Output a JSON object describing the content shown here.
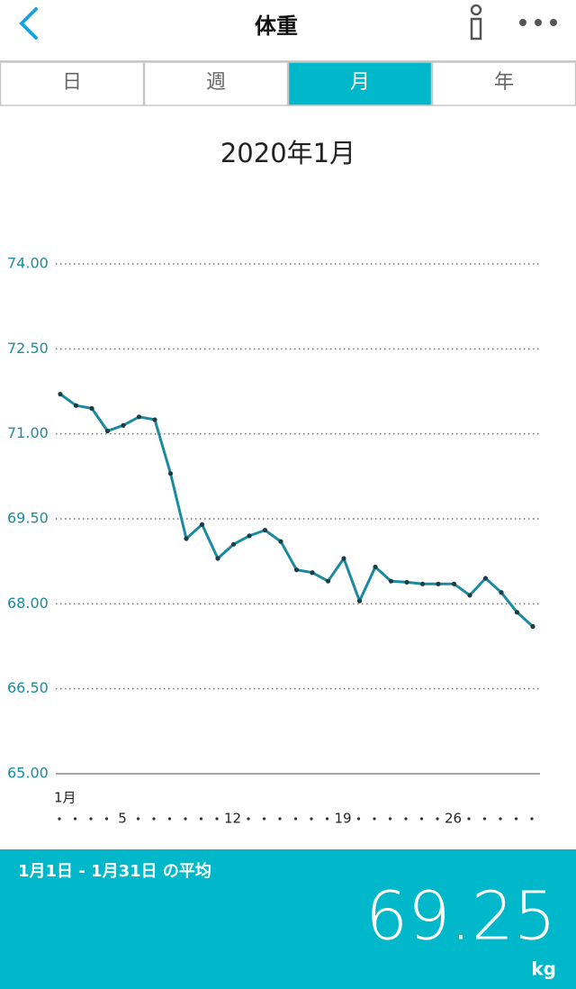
{
  "header": {
    "title": "体重"
  },
  "tabs": [
    "日",
    "週",
    "月",
    "年"
  ],
  "active_tab": 2,
  "chart_data": {
    "type": "line",
    "title": "2020年1月",
    "categories": [
      "1月",
      null,
      null,
      null,
      "5",
      null,
      null,
      null,
      null,
      null,
      null,
      "12",
      null,
      null,
      null,
      null,
      null,
      null,
      "19",
      null,
      null,
      null,
      null,
      null,
      null,
      "26",
      null,
      null,
      null,
      null,
      null
    ],
    "series": [
      {
        "name": "体重",
        "color": "#1a8aa0",
        "values": [
          71.7,
          71.5,
          71.45,
          71.05,
          71.15,
          71.3,
          71.25,
          70.3,
          69.15,
          69.4,
          68.8,
          69.05,
          69.2,
          69.3,
          69.1,
          68.6,
          68.55,
          68.4,
          68.8,
          68.05,
          68.65,
          68.4,
          68.38,
          68.35,
          68.35,
          68.35,
          68.15,
          68.45,
          68.2,
          67.85,
          67.6
        ]
      }
    ],
    "ylim": [
      65,
      74
    ],
    "yticks": [
      {
        "value": 65,
        "label": "65.00"
      },
      {
        "value": 66.5,
        "label": "66.50"
      },
      {
        "value": 68,
        "label": "68.00"
      },
      {
        "value": 69.5,
        "label": "69.50"
      },
      {
        "value": 71,
        "label": "71.00"
      },
      {
        "value": 72.5,
        "label": "72.50"
      },
      {
        "value": 74,
        "label": "74.00"
      }
    ],
    "grid": true
  },
  "summary": {
    "label": "1月1日 - 1月31日 の平均",
    "average": 69.25,
    "unit": "kg"
  }
}
